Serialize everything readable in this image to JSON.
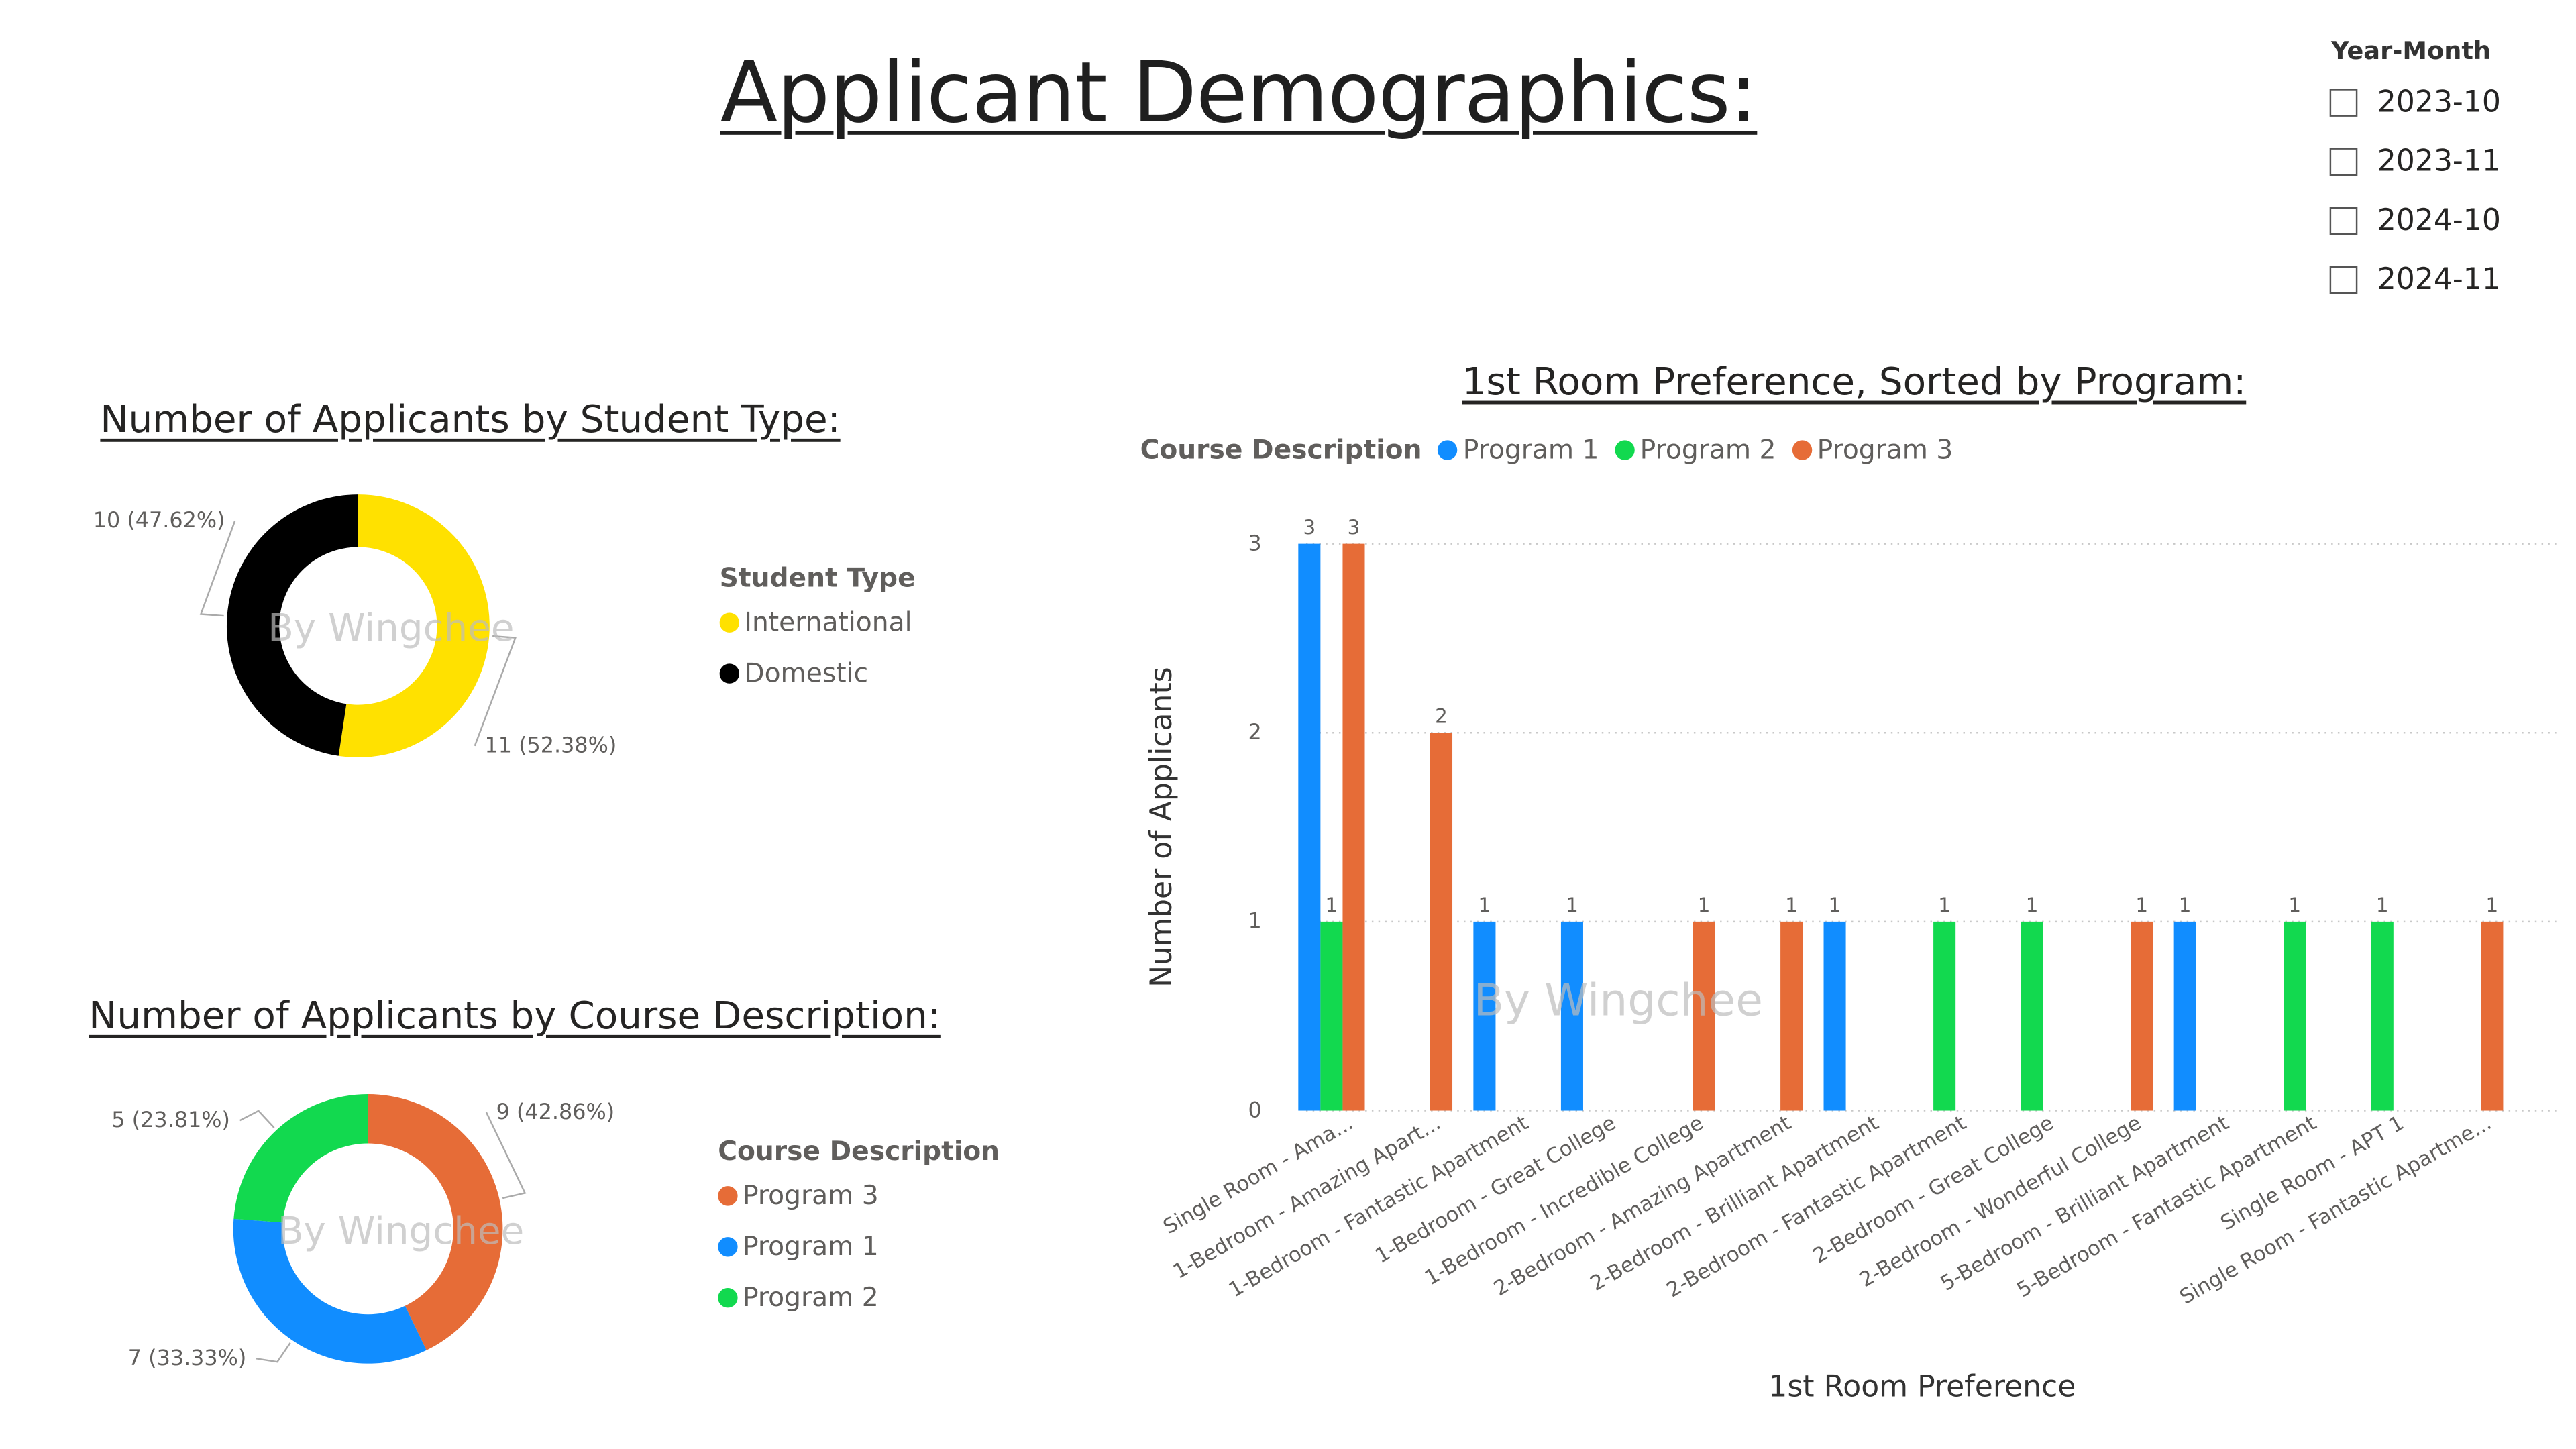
{
  "page": {
    "title": "Applicant Demographics:"
  },
  "slicer": {
    "title": "Year-Month",
    "items": [
      "2023-10",
      "2023-11",
      "2024-10",
      "2024-11"
    ]
  },
  "colors": {
    "international": "#FFE100",
    "domestic": "#000000",
    "program1": "#118DFF",
    "program2": "#12D94F",
    "program3": "#E66C37"
  },
  "watermark": "By Wingchee",
  "chart_data": [
    {
      "type": "pie",
      "title": "Number of Applicants by Student Type:",
      "legend_title": "Student Type",
      "legend_position": "right",
      "slices": [
        {
          "name": "International",
          "value": 11,
          "label": "11 (52.38%)",
          "color": "#FFE100"
        },
        {
          "name": "Domestic",
          "value": 10,
          "label": "10 (47.62%)",
          "color": "#000000"
        }
      ]
    },
    {
      "type": "pie",
      "title": "Number of Applicants by Course Description:",
      "legend_title": "Course Description",
      "legend_position": "right",
      "slices": [
        {
          "name": "Program 3",
          "value": 9,
          "label": "9 (42.86%)",
          "color": "#E66C37"
        },
        {
          "name": "Program 1",
          "value": 7,
          "label": "7 (33.33%)",
          "color": "#118DFF"
        },
        {
          "name": "Program 2",
          "value": 5,
          "label": "5 (23.81%)",
          "color": "#12D94F"
        }
      ]
    },
    {
      "type": "bar",
      "title": "1st Room Preference, Sorted by Program:",
      "legend_title": "Course Description",
      "legend_position": "top-left",
      "xlabel": "1st Room Preference",
      "ylabel": "Number of Applicants",
      "ylim": [
        0,
        3
      ],
      "yticks": [
        0,
        1,
        2,
        3
      ],
      "grid": true,
      "categories": [
        "Single Room - Ama...",
        "1-Bedroom - Amazing Apart...",
        "1-Bedroom - Fantastic Apartment",
        "1-Bedroom - Great College",
        "1-Bedroom - Incredible College",
        "2-Bedroom - Amazing Apartment",
        "2-Bedroom - Brilliant Apartment",
        "2-Bedroom - Fantastic Apartment",
        "2-Bedroom - Great College",
        "2-Bedroom - Wonderful College",
        "5-Bedroom - Brilliant Apartment",
        "5-Bedroom - Fantastic Apartment",
        "Single Room - APT 1",
        "Single Room - Fantastic Apartme..."
      ],
      "series": [
        {
          "name": "Program 1",
          "color": "#118DFF",
          "values": [
            3,
            null,
            1,
            1,
            null,
            null,
            1,
            null,
            null,
            null,
            1,
            null,
            null,
            null
          ]
        },
        {
          "name": "Program 2",
          "color": "#12D94F",
          "values": [
            1,
            null,
            null,
            null,
            null,
            null,
            null,
            1,
            1,
            null,
            null,
            1,
            1,
            null
          ]
        },
        {
          "name": "Program 3",
          "color": "#E66C37",
          "values": [
            3,
            2,
            null,
            null,
            1,
            1,
            null,
            null,
            null,
            1,
            null,
            null,
            null,
            1
          ]
        }
      ]
    }
  ]
}
